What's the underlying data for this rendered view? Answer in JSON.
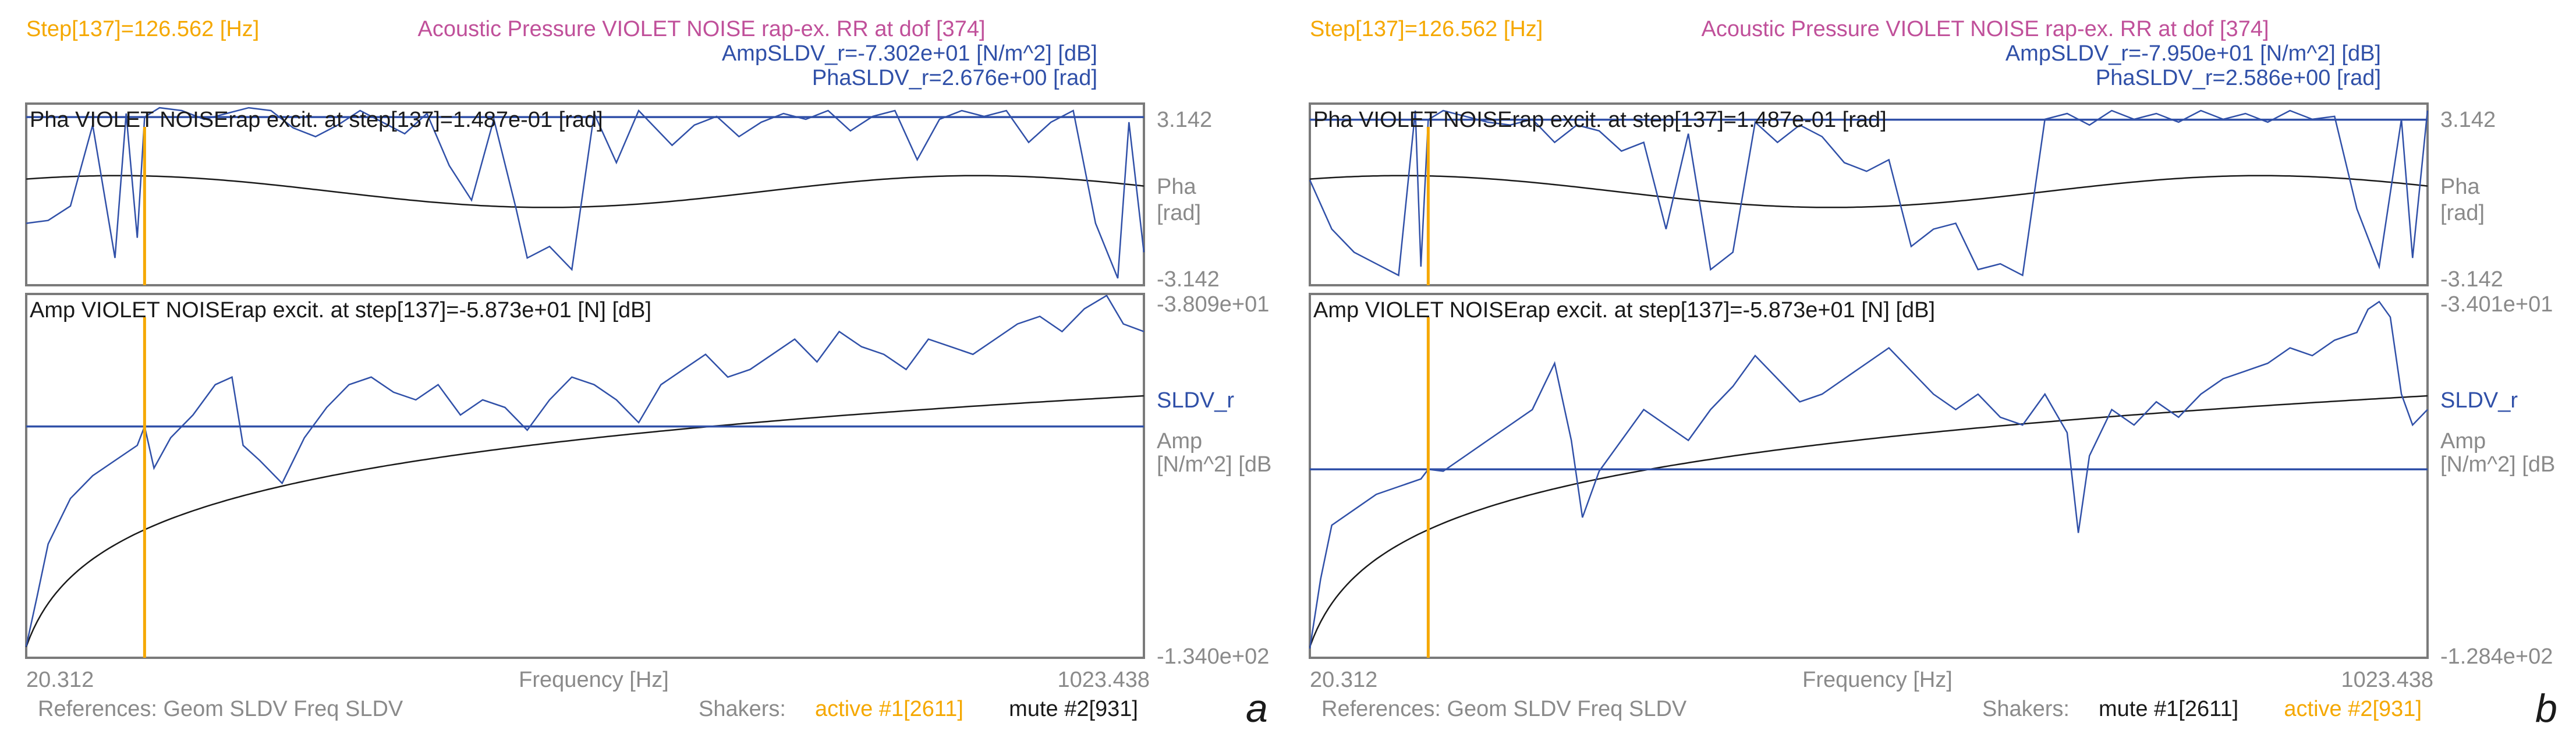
{
  "colors": {
    "orange": "#f5a800",
    "magenta": "#c0509a",
    "blue": "#3050a8",
    "gray": "#8a8a8a",
    "black": "#1a1a1a",
    "frame": "#7a7a7a"
  },
  "chart_data": [
    {
      "type": "line",
      "panel_letter": "a",
      "step_label": "Step[137]=126.562 [Hz]",
      "title": "Acoustic Pressure VIOLET NOISE rap-ex. RR at dof [374]",
      "amp_readout": "AmpSLDV_r=-7.302e+01 [N/m^2] [dB]",
      "pha_readout": "PhaSLDV_r=2.676e+00 [rad]",
      "phase_header": "Pha VIOLET NOISErap excit. at step[137]=1.487e-01 [rad]",
      "phase_axis": {
        "top": "3.142",
        "bottom": "-3.142",
        "label_line1": "Pha",
        "label_line2": "[rad]",
        "ylim": [
          -3.142,
          3.142
        ]
      },
      "amp_header": "Amp VIOLET NOISErap excit. at step[137]=-5.873e+01 [N] [dB]",
      "amp_axis": {
        "top": "-3.809e+01",
        "bottom": "-1.340e+02",
        "series_label": "SLDV_r",
        "label_line1": "Amp",
        "label_line2": "[N/m^2] [dB",
        "ylim": [
          -134.0,
          -38.09
        ]
      },
      "x_axis": {
        "min_label": "20.312",
        "max_label": "1023.438",
        "label": "Frequency [Hz]",
        "xlim": [
          20.312,
          1023.438
        ]
      },
      "cursor_freq": 126.562,
      "cursor_phase": 2.676,
      "cursor_amp": -73.02,
      "footer_refs": "References: Geom SLDV Freq SLDV",
      "shakers_label": "Shakers:",
      "shaker1": {
        "text": "active #1[2611]",
        "state": "active"
      },
      "shaker2": {
        "text": "mute #2[931]",
        "state": "mute"
      },
      "phase_series": [
        [
          20.3,
          -1.0
        ],
        [
          40,
          -0.9
        ],
        [
          60,
          -0.4
        ],
        [
          80,
          2.4
        ],
        [
          100,
          -2.2
        ],
        [
          110,
          2.8
        ],
        [
          120,
          -1.5
        ],
        [
          126.6,
          2.676
        ],
        [
          140,
          3.0
        ],
        [
          160,
          2.9
        ],
        [
          180,
          2.6
        ],
        [
          200,
          2.8
        ],
        [
          220,
          3.0
        ],
        [
          240,
          2.9
        ],
        [
          260,
          2.3
        ],
        [
          280,
          2.0
        ],
        [
          300,
          2.4
        ],
        [
          320,
          2.9
        ],
        [
          340,
          2.5
        ],
        [
          360,
          2.1
        ],
        [
          380,
          2.8
        ],
        [
          400,
          1.0
        ],
        [
          420,
          -0.2
        ],
        [
          440,
          2.6
        ],
        [
          460,
          -0.5
        ],
        [
          470,
          -2.2
        ],
        [
          490,
          -1.8
        ],
        [
          510,
          -2.6
        ],
        [
          530,
          2.8
        ],
        [
          550,
          1.1
        ],
        [
          570,
          2.9
        ],
        [
          600,
          1.7
        ],
        [
          620,
          2.4
        ],
        [
          640,
          2.7
        ],
        [
          660,
          2.0
        ],
        [
          680,
          2.5
        ],
        [
          700,
          2.8
        ],
        [
          720,
          2.6
        ],
        [
          740,
          2.9
        ],
        [
          760,
          2.2
        ],
        [
          780,
          2.7
        ],
        [
          800,
          2.9
        ],
        [
          820,
          1.2
        ],
        [
          840,
          2.6
        ],
        [
          860,
          2.9
        ],
        [
          880,
          2.7
        ],
        [
          900,
          2.9
        ],
        [
          920,
          1.8
        ],
        [
          940,
          2.5
        ],
        [
          960,
          2.9
        ],
        [
          980,
          -1.0
        ],
        [
          1000,
          -2.9
        ],
        [
          1010,
          2.5
        ],
        [
          1023.4,
          -2.0
        ]
      ],
      "amp_series": [
        [
          20.3,
          -131
        ],
        [
          30,
          -118
        ],
        [
          40,
          -104
        ],
        [
          60,
          -92
        ],
        [
          80,
          -86
        ],
        [
          100,
          -82
        ],
        [
          120,
          -78
        ],
        [
          126.6,
          -73
        ],
        [
          135,
          -84
        ],
        [
          150,
          -76
        ],
        [
          170,
          -70
        ],
        [
          190,
          -62
        ],
        [
          205,
          -60
        ],
        [
          215,
          -78
        ],
        [
          230,
          -82
        ],
        [
          250,
          -88
        ],
        [
          270,
          -76
        ],
        [
          290,
          -68
        ],
        [
          310,
          -62
        ],
        [
          330,
          -60
        ],
        [
          350,
          -64
        ],
        [
          370,
          -66
        ],
        [
          390,
          -62
        ],
        [
          410,
          -70
        ],
        [
          430,
          -66
        ],
        [
          450,
          -68
        ],
        [
          470,
          -74
        ],
        [
          490,
          -66
        ],
        [
          510,
          -60
        ],
        [
          530,
          -62
        ],
        [
          550,
          -66
        ],
        [
          570,
          -72
        ],
        [
          590,
          -62
        ],
        [
          610,
          -58
        ],
        [
          630,
          -54
        ],
        [
          650,
          -60
        ],
        [
          670,
          -58
        ],
        [
          690,
          -54
        ],
        [
          710,
          -50
        ],
        [
          730,
          -56
        ],
        [
          750,
          -48
        ],
        [
          770,
          -52
        ],
        [
          790,
          -54
        ],
        [
          810,
          -58
        ],
        [
          830,
          -50
        ],
        [
          850,
          -52
        ],
        [
          870,
          -54
        ],
        [
          890,
          -50
        ],
        [
          910,
          -46
        ],
        [
          930,
          -44
        ],
        [
          950,
          -48
        ],
        [
          970,
          -42
        ],
        [
          990,
          -38.5
        ],
        [
          1005,
          -46
        ],
        [
          1023.4,
          -48
        ]
      ]
    },
    {
      "type": "line",
      "panel_letter": "b",
      "step_label": "Step[137]=126.562 [Hz]",
      "title": "Acoustic Pressure VIOLET NOISE rap-ex. RR at dof [374]",
      "amp_readout": "AmpSLDV_r=-7.950e+01 [N/m^2] [dB]",
      "pha_readout": "PhaSLDV_r=2.586e+00 [rad]",
      "phase_header": "Pha VIOLET NOISErap excit. at step[137]=1.487e-01 [rad]",
      "phase_axis": {
        "top": "3.142",
        "bottom": "-3.142",
        "label_line1": "Pha",
        "label_line2": "[rad]",
        "ylim": [
          -3.142,
          3.142
        ]
      },
      "amp_header": "Amp VIOLET NOISErap excit. at step[137]=-5.873e+01 [N] [dB]",
      "amp_axis": {
        "top": "-3.401e+01",
        "bottom": "-1.284e+02",
        "series_label": "SLDV_r",
        "label_line1": "Amp",
        "label_line2": "[N/m^2] [dB",
        "ylim": [
          -128.4,
          -34.01
        ]
      },
      "x_axis": {
        "min_label": "20.312",
        "max_label": "1023.438",
        "label": "Frequency [Hz]",
        "xlim": [
          20.312,
          1023.438
        ]
      },
      "cursor_freq": 126.562,
      "cursor_phase": 2.586,
      "cursor_amp": -79.5,
      "footer_refs": "References: Geom SLDV Freq SLDV",
      "shakers_label": "Shakers:",
      "shaker1": {
        "text": "mute #1[2611]",
        "state": "mute"
      },
      "shaker2": {
        "text": "active #2[931]",
        "state": "active"
      },
      "phase_series": [
        [
          20.3,
          0.5
        ],
        [
          40,
          -1.2
        ],
        [
          60,
          -2.0
        ],
        [
          80,
          -2.4
        ],
        [
          100,
          -2.8
        ],
        [
          115,
          2.9
        ],
        [
          120,
          -2.5
        ],
        [
          126.6,
          2.586
        ],
        [
          140,
          2.9
        ],
        [
          160,
          2.7
        ],
        [
          180,
          2.5
        ],
        [
          200,
          2.4
        ],
        [
          220,
          2.6
        ],
        [
          240,
          1.8
        ],
        [
          260,
          2.4
        ],
        [
          280,
          2.2
        ],
        [
          300,
          1.5
        ],
        [
          320,
          1.8
        ],
        [
          340,
          -1.2
        ],
        [
          360,
          2.1
        ],
        [
          380,
          -2.6
        ],
        [
          400,
          -2.0
        ],
        [
          420,
          2.5
        ],
        [
          440,
          1.8
        ],
        [
          460,
          2.4
        ],
        [
          480,
          2.0
        ],
        [
          500,
          1.1
        ],
        [
          520,
          0.8
        ],
        [
          540,
          1.2
        ],
        [
          560,
          -1.8
        ],
        [
          580,
          -1.2
        ],
        [
          600,
          -1.0
        ],
        [
          620,
          -2.6
        ],
        [
          640,
          -2.4
        ],
        [
          660,
          -2.8
        ],
        [
          680,
          2.6
        ],
        [
          700,
          2.8
        ],
        [
          720,
          2.4
        ],
        [
          740,
          2.9
        ],
        [
          760,
          2.6
        ],
        [
          780,
          2.8
        ],
        [
          800,
          2.5
        ],
        [
          820,
          2.9
        ],
        [
          840,
          2.6
        ],
        [
          860,
          2.8
        ],
        [
          880,
          2.5
        ],
        [
          900,
          2.9
        ],
        [
          920,
          2.6
        ],
        [
          940,
          2.7
        ],
        [
          960,
          -0.5
        ],
        [
          980,
          -2.5
        ],
        [
          1000,
          2.6
        ],
        [
          1010,
          -2.2
        ],
        [
          1023.4,
          2.9
        ]
      ],
      "amp_series": [
        [
          20.3,
          -126
        ],
        [
          30,
          -108
        ],
        [
          40,
          -94
        ],
        [
          60,
          -90
        ],
        [
          80,
          -86
        ],
        [
          100,
          -84
        ],
        [
          120,
          -82
        ],
        [
          126.6,
          -79.5
        ],
        [
          140,
          -80
        ],
        [
          160,
          -76
        ],
        [
          180,
          -72
        ],
        [
          200,
          -68
        ],
        [
          220,
          -64
        ],
        [
          230,
          -58
        ],
        [
          240,
          -52
        ],
        [
          255,
          -72
        ],
        [
          265,
          -92
        ],
        [
          280,
          -80
        ],
        [
          300,
          -72
        ],
        [
          320,
          -64
        ],
        [
          340,
          -68
        ],
        [
          360,
          -72
        ],
        [
          380,
          -64
        ],
        [
          400,
          -58
        ],
        [
          420,
          -50
        ],
        [
          440,
          -56
        ],
        [
          460,
          -62
        ],
        [
          480,
          -60
        ],
        [
          500,
          -56
        ],
        [
          520,
          -52
        ],
        [
          540,
          -48
        ],
        [
          560,
          -54
        ],
        [
          580,
          -60
        ],
        [
          600,
          -64
        ],
        [
          620,
          -60
        ],
        [
          640,
          -66
        ],
        [
          660,
          -68
        ],
        [
          680,
          -60
        ],
        [
          700,
          -70
        ],
        [
          710,
          -96
        ],
        [
          720,
          -76
        ],
        [
          740,
          -64
        ],
        [
          760,
          -68
        ],
        [
          780,
          -62
        ],
        [
          800,
          -66
        ],
        [
          820,
          -60
        ],
        [
          840,
          -56
        ],
        [
          860,
          -54
        ],
        [
          880,
          -52
        ],
        [
          900,
          -48
        ],
        [
          920,
          -50
        ],
        [
          940,
          -46
        ],
        [
          960,
          -44
        ],
        [
          970,
          -38
        ],
        [
          980,
          -36
        ],
        [
          990,
          -40
        ],
        [
          1000,
          -60
        ],
        [
          1010,
          -68
        ],
        [
          1023.4,
          -64
        ]
      ]
    }
  ]
}
